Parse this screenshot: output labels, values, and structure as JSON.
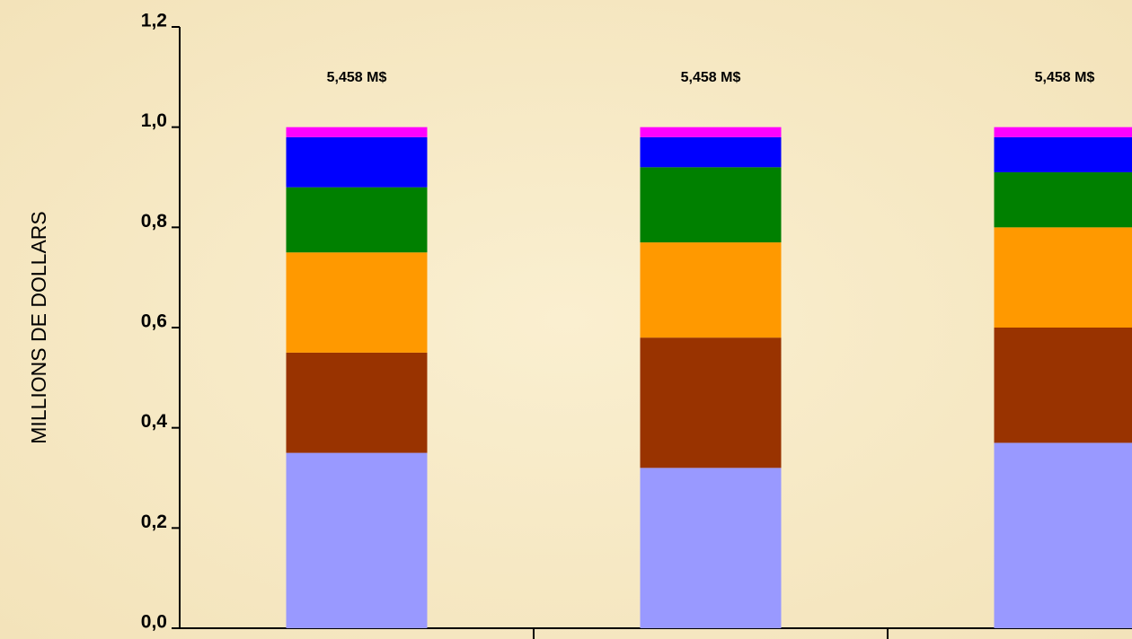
{
  "chart_data": {
    "type": "stacked-bar",
    "y_label": "MILLIONS DE DOLLARS",
    "categories": [
      null,
      null,
      null
    ],
    "annotations": [
      "5,458  M$",
      "5,458  M$",
      "5,458  M$"
    ],
    "series": [
      {
        "color": "#9999ff",
        "values": [
          0.35,
          0.32,
          0.37
        ]
      },
      {
        "color": "#993300",
        "values": [
          0.2,
          0.26,
          0.23
        ]
      },
      {
        "color": "#ff9900",
        "values": [
          0.2,
          0.19,
          0.2
        ]
      },
      {
        "color": "#008000",
        "values": [
          0.13,
          0.15,
          0.11
        ]
      },
      {
        "color": "#0000ff",
        "values": [
          0.1,
          0.06,
          0.07
        ]
      },
      {
        "color": "#ff00ff",
        "values": [
          0.02,
          0.02,
          0.02
        ]
      }
    ],
    "ylim": [
      0,
      1.2
    ],
    "yticks": [
      {
        "value": 0,
        "label": "0,0"
      },
      {
        "value": 0.2,
        "label": "0,2"
      },
      {
        "value": 0.4,
        "label": "0,4"
      },
      {
        "value": 0.6,
        "label": "0,6"
      },
      {
        "value": 0.8,
        "label": "0,8"
      },
      {
        "value": 1.0,
        "label": "1,0"
      },
      {
        "value": 1.2,
        "label": "1,2"
      }
    ]
  }
}
